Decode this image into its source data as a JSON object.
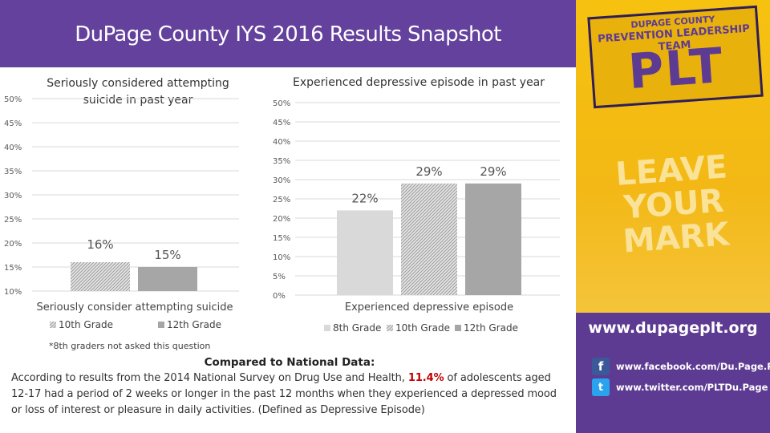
{
  "header": {
    "title": "DuPage County IYS 2016 Results Snapshot"
  },
  "chart_data": [
    {
      "type": "bar",
      "title_lines": [
        "Seriously considered attempting",
        "suicide in past year"
      ],
      "categories": [
        "Seriously consider attempting suicide"
      ],
      "ylim": [
        10,
        50
      ],
      "yticks": [
        "50%",
        "45%",
        "40%",
        "35%",
        "30%",
        "25%",
        "20%",
        "15%",
        "10%"
      ],
      "ytick_values": [
        50,
        45,
        40,
        35,
        30,
        25,
        20,
        15,
        10
      ],
      "series": [
        {
          "name": "10th Grade",
          "values": [
            16
          ],
          "label": "16%",
          "color": "#d9d9d9",
          "pattern": "hatch"
        },
        {
          "name": "12th Grade",
          "values": [
            15
          ],
          "label": "15%",
          "color": "#a6a6a6",
          "pattern": "solid"
        }
      ],
      "legend": "bottom",
      "grid": true,
      "note": "*8th graders not asked this question"
    },
    {
      "type": "bar",
      "title_lines": [
        "Experienced depressive episode in past year"
      ],
      "categories": [
        "Experienced depressive episode"
      ],
      "ylim": [
        0,
        50
      ],
      "yticks": [
        "50%",
        "45%",
        "40%",
        "35%",
        "30%",
        "25%",
        "20%",
        "15%",
        "10%",
        "5%",
        "0%"
      ],
      "ytick_values": [
        50,
        45,
        40,
        35,
        30,
        25,
        20,
        15,
        10,
        5,
        0
      ],
      "series": [
        {
          "name": "8th Grade",
          "values": [
            22
          ],
          "label": "22%",
          "color": "#d9d9d9",
          "pattern": "solid"
        },
        {
          "name": "10th Grade",
          "values": [
            29
          ],
          "label": "29%",
          "color": "#d9d9d9",
          "pattern": "hatch"
        },
        {
          "name": "12th Grade",
          "values": [
            29
          ],
          "label": "29%",
          "color": "#a6a6a6",
          "pattern": "solid"
        }
      ],
      "legend": "bottom",
      "grid": true
    }
  ],
  "national": {
    "heading": "Compared to National Data:",
    "body_before": "According to results from the 2014 National Survey on Drug Use and Health,",
    "highlight": "11.4%",
    "body_after": "of adolescents aged 12-17 had a period of 2 weeks or longer in the past 12 months when they experienced a depressed mood or loss of interest or pleasure in daily activities. (Defined as Depressive Episode)"
  },
  "sidebar": {
    "logo_top": "DUPAGE COUNTY",
    "logo_mid": "PREVENTION LEADERSHIP TEAM",
    "logo_big": "PLT",
    "slogan_line1": "LEAVE YOUR",
    "slogan_line2": "MARK",
    "url": "www.dupageplt.org",
    "facebook_icon": "f",
    "facebook": "www.facebook.com/Du.Page.PLT",
    "twitter_icon": "t",
    "twitter": "www.twitter.com/PLTDu.Page"
  },
  "colors": {
    "header": "#64419c",
    "sidebar": "#5e3b92",
    "accent_yellow": "#f6c20f",
    "highlight": "#c00000"
  }
}
